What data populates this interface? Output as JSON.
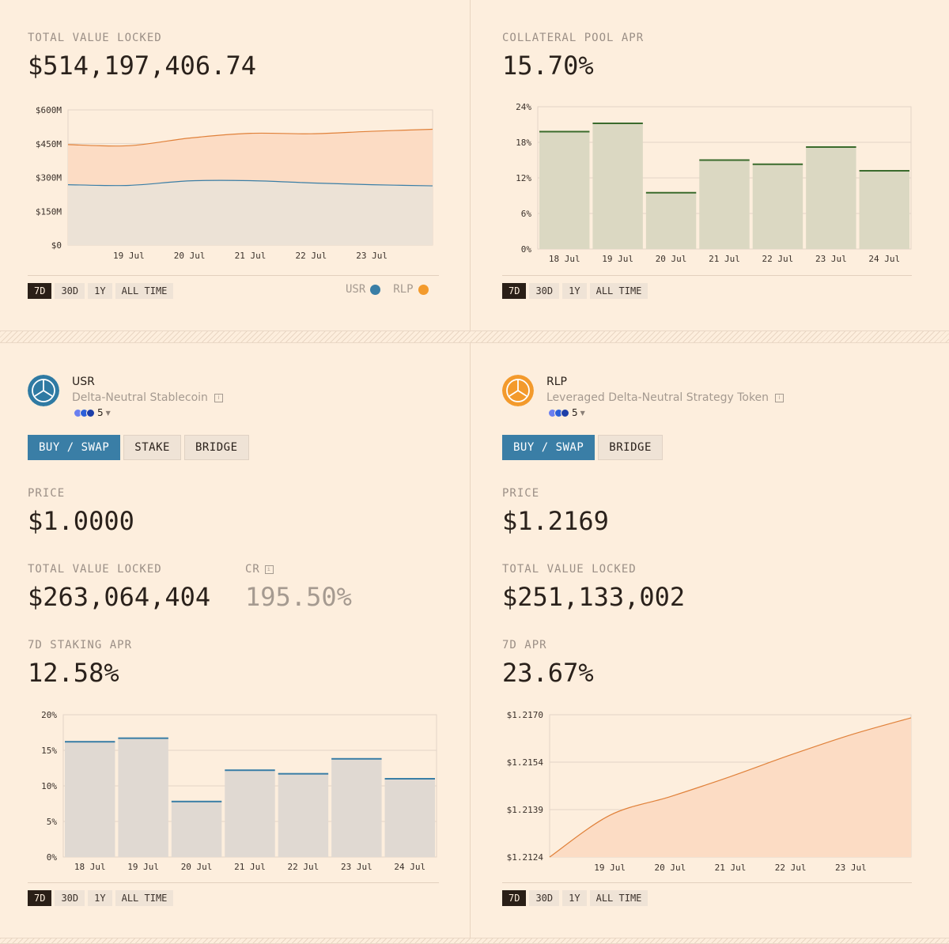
{
  "tvl_panel": {
    "label": "TOTAL VALUE LOCKED",
    "value": "$514,197,406.74",
    "ranges": [
      "7D",
      "30D",
      "1Y",
      "ALL TIME"
    ],
    "active_range": "7D",
    "legend": [
      {
        "name": "USR",
        "color": "#3a7ea6"
      },
      {
        "name": "RLP",
        "color": "#f39a2c"
      }
    ]
  },
  "apr_panel": {
    "label": "COLLATERAL POOL APR",
    "value": "15.70%",
    "ranges": [
      "7D",
      "30D",
      "1Y",
      "ALL TIME"
    ],
    "active_range": "7D"
  },
  "usr": {
    "name": "USR",
    "description": "Delta-Neutral Stablecoin",
    "chain_count": "5",
    "actions": [
      "BUY / SWAP",
      "STAKE",
      "BRIDGE"
    ],
    "price_label": "PRICE",
    "price": "$1.0000",
    "tvl_label": "TOTAL VALUE LOCKED",
    "tvl": "$263,064,404",
    "cr_label": "CR",
    "cr": "195.50%",
    "apr_label": "7D STAKING APR",
    "apr": "12.58%",
    "ranges": [
      "7D",
      "30D",
      "1Y",
      "ALL TIME"
    ],
    "active_range": "7D"
  },
  "rlp": {
    "name": "RLP",
    "description": "Leveraged Delta-Neutral Strategy Token",
    "chain_count": "5",
    "actions": [
      "BUY / SWAP",
      "BRIDGE"
    ],
    "price_label": "PRICE",
    "price": "$1.2169",
    "tvl_label": "TOTAL VALUE LOCKED",
    "tvl": "$251,133,002",
    "apr_label": "7D APR",
    "apr": "23.67%",
    "ranges": [
      "7D",
      "30D",
      "1Y",
      "ALL TIME"
    ],
    "active_range": "7D"
  },
  "chart_data": [
    {
      "id": "tvl",
      "type": "area",
      "stacked": true,
      "x": [
        "18 Jul",
        "19 Jul",
        "20 Jul",
        "21 Jul",
        "22 Jul",
        "23 Jul",
        "24 Jul"
      ],
      "xticks": [
        "19 Jul",
        "20 Jul",
        "21 Jul",
        "22 Jul",
        "23 Jul"
      ],
      "yticks": [
        "$0",
        "$150M",
        "$300M",
        "$450M",
        "$600M"
      ],
      "ylim": [
        0,
        600
      ],
      "series": [
        {
          "name": "USR",
          "color": "#3a7ea6",
          "fill": "#ece2d6",
          "values": [
            268,
            265,
            285,
            286,
            276,
            268,
            263
          ]
        },
        {
          "name": "RLP",
          "color": "#e0813a",
          "fill": "#fcdcc4",
          "values": [
            178,
            176,
            190,
            210,
            218,
            237,
            251
          ]
        }
      ],
      "grid": true
    },
    {
      "id": "collateral_apr",
      "type": "bar",
      "categories": [
        "18 Jul",
        "19 Jul",
        "20 Jul",
        "21 Jul",
        "22 Jul",
        "23 Jul",
        "24 Jul"
      ],
      "values": [
        19.8,
        21.2,
        9.5,
        15.0,
        14.3,
        17.2,
        13.2
      ],
      "yticks": [
        "0%",
        "6%",
        "12%",
        "18%",
        "24%"
      ],
      "ylim": [
        0,
        24
      ],
      "bar_color": "#dbd8c2",
      "cap_color": "#3a6b2c",
      "grid": true
    },
    {
      "id": "usr_staking_apr",
      "type": "bar",
      "categories": [
        "18 Jul",
        "19 Jul",
        "20 Jul",
        "21 Jul",
        "22 Jul",
        "23 Jul",
        "24 Jul"
      ],
      "values": [
        16.2,
        16.7,
        7.8,
        12.2,
        11.7,
        13.8,
        11.0
      ],
      "yticks": [
        "0%",
        "5%",
        "10%",
        "15%",
        "20%"
      ],
      "ylim": [
        0,
        20
      ],
      "bar_color": "#e0d9d2",
      "cap_color": "#3a7ea6",
      "grid": true
    },
    {
      "id": "rlp_price",
      "type": "area",
      "x": [
        "18 Jul",
        "19 Jul",
        "20 Jul",
        "21 Jul",
        "22 Jul",
        "23 Jul",
        "24 Jul"
      ],
      "xticks": [
        "19 Jul",
        "20 Jul",
        "21 Jul",
        "22 Jul",
        "23 Jul"
      ],
      "yticks": [
        "$1.2124",
        "$1.2139",
        "$1.2154",
        "$1.2170"
      ],
      "ylim": [
        1.2124,
        1.217
      ],
      "series": [
        {
          "name": "RLP",
          "color": "#e0813a",
          "fill": "#fcdcc4",
          "values": [
            1.2124,
            1.21375,
            1.21435,
            1.215,
            1.2157,
            1.21635,
            1.2169
          ]
        }
      ],
      "grid": true
    }
  ]
}
